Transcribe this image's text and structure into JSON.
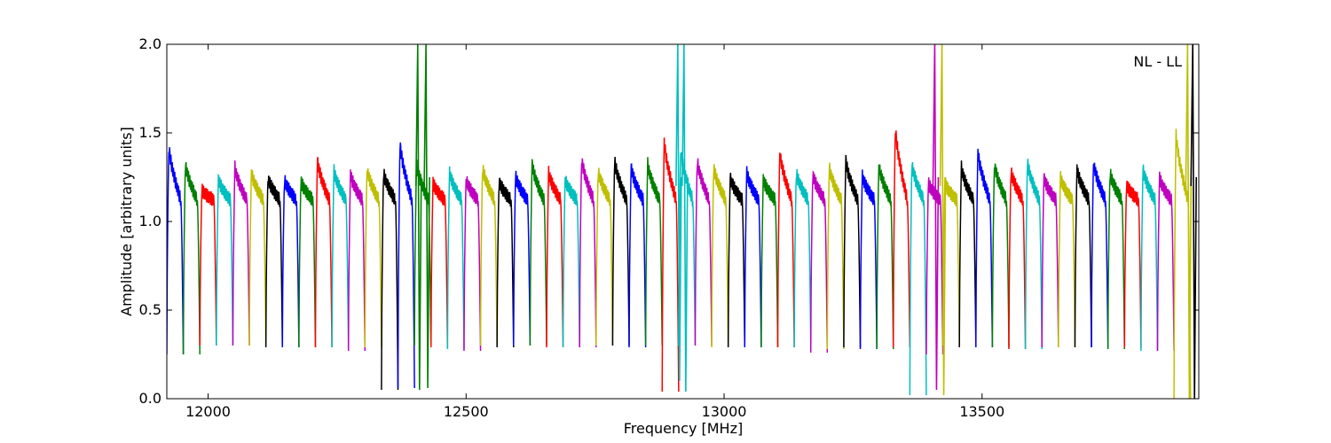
{
  "chart_data": {
    "type": "line",
    "title": "",
    "annotation": "NL - LL",
    "xlabel": "Frequency [MHz]",
    "ylabel": "Amplitude [arbitrary units]",
    "xlim": [
      11920,
      13920
    ],
    "ylim": [
      0.0,
      2.0
    ],
    "grid": false,
    "legend": "none",
    "xticks": [
      12000,
      12500,
      13000,
      13500
    ],
    "xtick_labels": [
      "12000",
      "12500",
      "13000",
      "13500"
    ],
    "yticks": [
      0.0,
      0.5,
      1.0,
      1.5,
      2.0
    ],
    "ytick_labels": [
      "0.0",
      "0.5",
      "1.0",
      "1.5",
      "2.0"
    ],
    "palette": [
      "#0000ff",
      "#008000",
      "#ff0000",
      "#00bfbf",
      "#bf00bf",
      "#bfbf00",
      "#000000"
    ],
    "channel_width_mhz": 32,
    "channel_count": 62,
    "channel_start_mhz": 11920,
    "channel_peaks": [
      1.43,
      1.33,
      1.18,
      1.24,
      1.31,
      1.28,
      1.25,
      1.24,
      1.23,
      1.35,
      1.29,
      1.27,
      1.3,
      1.28,
      1.45,
      1.33,
      1.22,
      1.28,
      1.24,
      1.31,
      1.23,
      1.26,
      1.33,
      1.28,
      1.24,
      1.36,
      1.29,
      1.35,
      1.31,
      1.33,
      1.46,
      1.41,
      1.35,
      1.31,
      1.25,
      1.28,
      1.24,
      1.4,
      1.28,
      1.27,
      1.31,
      1.35,
      1.26,
      1.32,
      1.54,
      1.33,
      1.22,
      1.22,
      1.31,
      1.4,
      1.33,
      1.29,
      1.34,
      1.25,
      1.25,
      1.3,
      1.34,
      1.28,
      1.21,
      1.3,
      1.25,
      1.5
    ],
    "channel_mins": [
      0.25,
      0.25,
      0.3,
      0.3,
      0.3,
      0.3,
      0.29,
      0.29,
      0.29,
      0.29,
      0.29,
      0.27,
      0.29,
      0.05,
      0.06,
      0.3,
      0.29,
      0.28,
      0.27,
      0.3,
      0.29,
      0.3,
      0.3,
      0.29,
      0.29,
      0.29,
      0.3,
      0.3,
      0.29,
      0.3,
      0.04,
      0.3,
      0.3,
      0.29,
      0.29,
      0.29,
      0.29,
      0.29,
      0.29,
      0.26,
      0.28,
      0.29,
      0.28,
      0.28,
      0.29,
      0.02,
      0.25,
      0.3,
      0.29,
      0.29,
      0.29,
      0.28,
      0.28,
      0.29,
      0.29,
      0.29,
      0.29,
      0.28,
      0.29,
      0.27,
      0.27,
      0.0
    ],
    "rfi_spikes": [
      {
        "x": 12408,
        "y_min": 0.05,
        "y_max": 2.0
      },
      {
        "x": 12424,
        "y_min": 0.06,
        "y_max": 2.0
      },
      {
        "x": 12912,
        "y_min": 0.1,
        "y_max": 2.0
      },
      {
        "x": 12924,
        "y_min": 0.04,
        "y_max": 2.0
      },
      {
        "x": 13410,
        "y_min": 0.05,
        "y_max": 2.0
      },
      {
        "x": 13424,
        "y_min": 0.02,
        "y_max": 2.0
      },
      {
        "x": 13900,
        "y_min": 0.0,
        "y_max": 2.0
      },
      {
        "x": 13910,
        "y_min": 0.0,
        "y_max": 2.0
      }
    ]
  }
}
